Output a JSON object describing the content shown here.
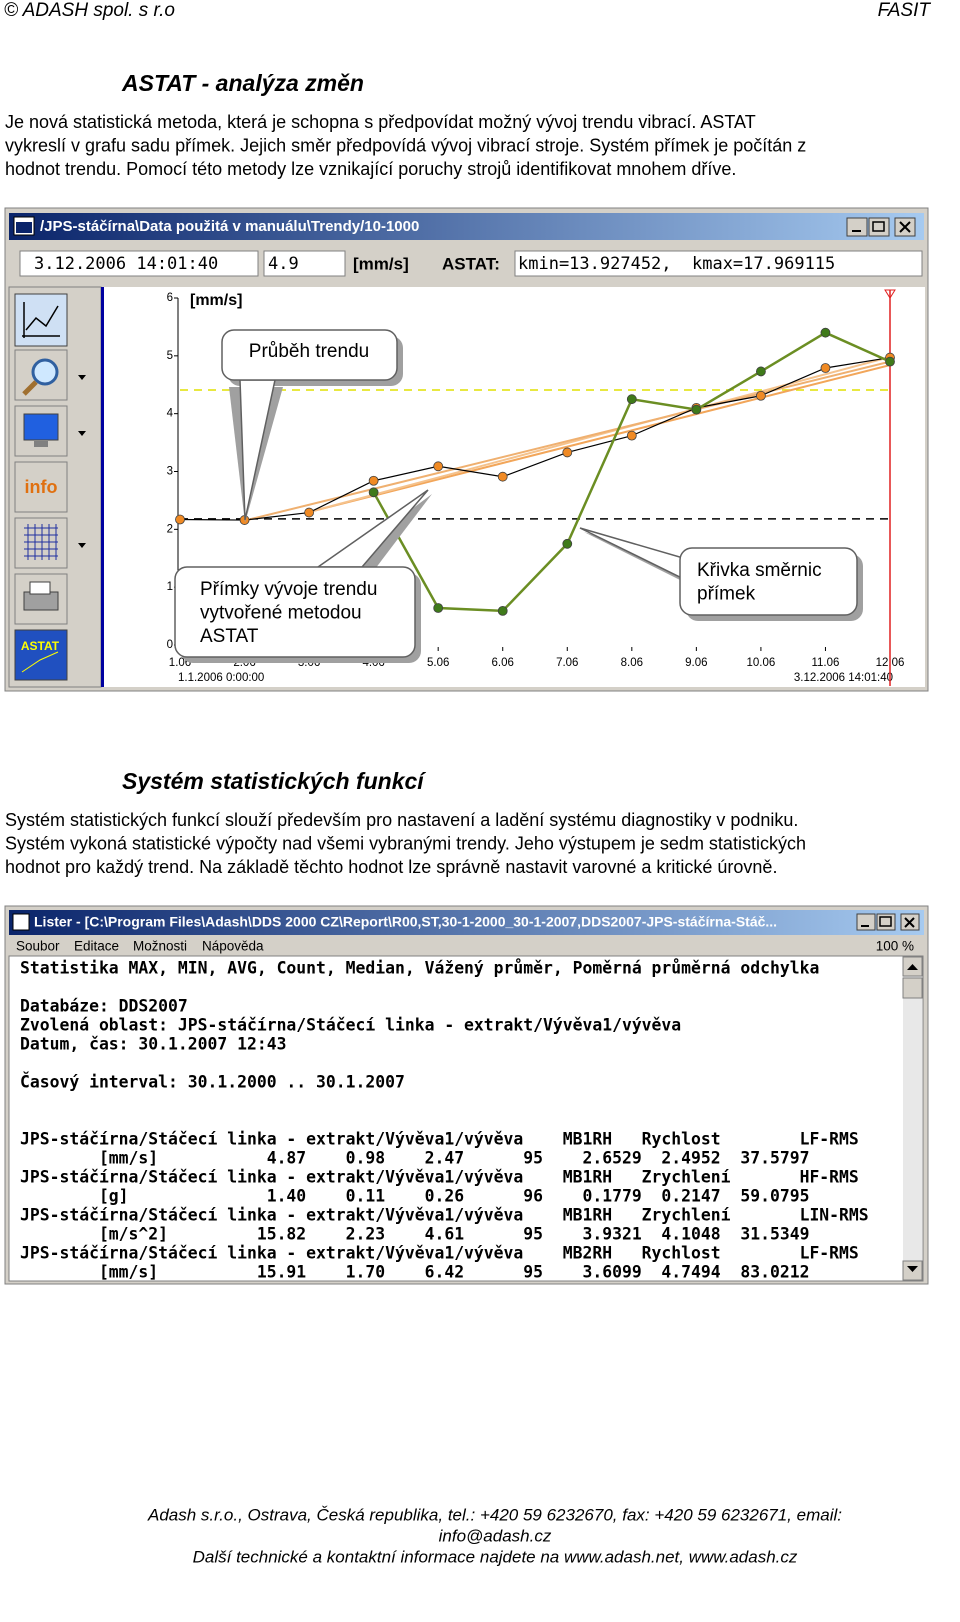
{
  "header": {
    "left": "© ADASH spol. s r.o",
    "right": "FASIT"
  },
  "section1": {
    "title": "ASTAT - analýza změn",
    "lines": [
      "Je nová statistická metoda, která je schopna s předpovídat možný vývoj trendu vibrací. ASTAT",
      "vykreslí v grafu sadu přímek. Jejich směr předpovídá vývoj vibrací stroje. Systém přímek je počítán z",
      "hodnot trendu. Pomocí této metody lze vznikající poruchy strojů identifikovat mnohem dříve."
    ]
  },
  "trend_window": {
    "title": "/JPS-stáčírna\\Data použitá v manuálu\\Trendy/10-1000",
    "date_field": "3.12.2006 14:01:40",
    "value_field": "4.9",
    "unit": "[mm/s]",
    "astat_label": "ASTAT:",
    "astat_field": "kmin=13.927452,  kmax=17.969115",
    "tools": [
      "info",
      "ASTAT"
    ],
    "chart": {
      "type": "line",
      "y_label": "[mm/s]",
      "xlim": [
        1.06,
        12.06
      ],
      "ylim": [
        0,
        6
      ],
      "xticks": [
        1.06,
        2.06,
        3.06,
        4.06,
        5.06,
        6.06,
        7.06,
        8.06,
        9.06,
        10.06,
        11.06,
        12.06
      ],
      "yticks": [
        0,
        1,
        2,
        3,
        4,
        5,
        6
      ],
      "x_start_label": "1.1.2006 0:00:00",
      "x_end_label": "3.12.2006 14:01:40",
      "series": [
        {
          "color": "#000000",
          "marker_color": "#f08a24",
          "x": [
            1.06,
            2.06,
            3.06,
            4.06,
            5.06,
            6.06,
            7.06,
            8.06,
            9.06,
            10.06,
            11.06,
            12.06
          ],
          "values": [
            2.17,
            2.16,
            2.29,
            2.84,
            3.09,
            2.91,
            3.33,
            3.62,
            4.1,
            4.31,
            4.79,
            4.97
          ]
        },
        {
          "color": "#6b8e23",
          "marker_color": "#3f7a1a",
          "x": [
            4.06,
            5.06,
            6.06,
            7.06,
            8.06,
            9.06,
            10.06,
            11.06,
            12.06
          ],
          "values": [
            2.64,
            0.64,
            0.59,
            1.75,
            4.25,
            4.07,
            4.73,
            5.4,
            4.9
          ]
        }
      ],
      "trend_lines": [
        {
          "color": "#f2a65a",
          "x": [
            3.06,
            12.06
          ],
          "values": [
            2.3,
            4.84
          ]
        },
        {
          "color": "#f5c28c",
          "x": [
            3.06,
            12.06
          ],
          "values": [
            2.3,
            4.98
          ]
        },
        {
          "color": "#efb070",
          "x": [
            2.06,
            12.06
          ],
          "values": [
            2.15,
            4.9
          ]
        }
      ],
      "reference_lines": [
        {
          "color": "#e0e000",
          "value": 4.41
        },
        {
          "color": "#000000",
          "value": 2.18
        }
      ],
      "cursor": {
        "color": "#e02020",
        "x": 12.06
      },
      "annotations": [
        {
          "lines": [
            "Průběh trendu"
          ]
        },
        {
          "lines": [
            "Přímky vývoje trendu",
            "vytvořené metodou",
            "ASTAT"
          ]
        },
        {
          "lines": [
            "Křivka směrnic",
            "přímek"
          ]
        }
      ]
    }
  },
  "section2": {
    "title": "Systém statistických funkcí",
    "lines": [
      "Systém statistických funkcí slouží především pro nastavení a ladění systému diagnostiky v podniku.",
      "Systém vykoná statistické výpočty nad všemi vybranými trendy. Jeho výstupem je sedm statistických",
      "hodnot pro každý trend. Na základě těchto hodnot lze správně nastavit varovné a kritické úrovně."
    ]
  },
  "lister": {
    "title": "Lister - [C:\\Program Files\\Adash\\DDS 2000 CZ\\Report\\R00,ST,30-1-2000_30-1-2007,DDS2007-JPS-stáčírna-Stáč...",
    "menu": [
      "Soubor",
      "Editace",
      "Možnosti",
      "Nápověda"
    ],
    "zoom": "100 %",
    "lines": [
      "Statistika MAX, MIN, AVG, Count, Median, Vážený průměr, Poměrná průměrná odchylka",
      "Databáze: DDS2007",
      "Zvolená oblast: JPS-stáčírna/Stáčecí linka - extrakt/Vývěva1/vývěva",
      "Datum, čas: 30.1.2007 12:43",
      "Časový interval: 30.1.2000 .. 30.1.2007",
      "JPS-stáčírna/Stáčecí linka - extrakt/Vývěva1/vývěva    MB1RH   Rychlost        LF-RMS",
      "        [mm/s]           4.87    0.98    2.47      95    2.6529  2.4952  37.5797",
      "JPS-stáčírna/Stáčecí linka - extrakt/Vývěva1/vývěva    MB1RH   Zrychlení       HF-RMS",
      "        [g]              1.40    0.11    0.26      96    0.1779  0.2147  59.0795",
      "JPS-stáčírna/Stáčecí linka - extrakt/Vývěva1/vývěva    MB1RH   Zrychlení       LIN-RMS",
      "        [m/s^2]         15.82    2.23    4.61      95    3.9321  4.1048  31.5349",
      "JPS-stáčírna/Stáčecí linka - extrakt/Vývěva1/vývěva    MB2RH   Rychlost        LF-RMS",
      "        [mm/s]          15.91    1.70    6.42      95    3.6099  4.7494  83.0212"
    ]
  },
  "footer": {
    "lines": [
      "Adash s.r.o., Ostrava, Česká republika, tel.: +420 59 6232670, fax: +420 59 6232671, email:",
      "info@adash.cz",
      "Další technické a kontaktní informace najdete na www.adash.net, www.adash.cz"
    ]
  }
}
